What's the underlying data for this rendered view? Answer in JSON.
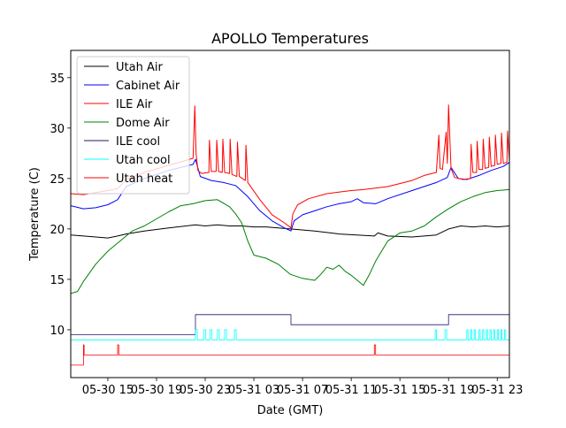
{
  "chart_data": {
    "type": "line",
    "title": "APOLLO Temperatures",
    "xlabel": "Date (GMT)",
    "ylabel": "Temperature (C)",
    "x_unit": "hours since 05-30 00:00 GMT",
    "xlim": [
      11.95,
      48.0
    ],
    "ylim": [
      5.26,
      37.7
    ],
    "grid": false,
    "legend_position": "top-left",
    "x_ticks": [
      {
        "value": 15,
        "label": "05-30 15"
      },
      {
        "value": 19,
        "label": "05-30 19"
      },
      {
        "value": 23,
        "label": "05-30 23"
      },
      {
        "value": 27,
        "label": "05-31 03"
      },
      {
        "value": 31,
        "label": "05-31 07"
      },
      {
        "value": 35,
        "label": "05-31 11"
      },
      {
        "value": 39,
        "label": "05-31 15"
      },
      {
        "value": 43,
        "label": "05-31 19"
      },
      {
        "value": 47,
        "label": "05-31 23"
      }
    ],
    "y_ticks": [
      {
        "value": 10,
        "label": "10"
      },
      {
        "value": 15,
        "label": "15"
      },
      {
        "value": 20,
        "label": "20"
      },
      {
        "value": 25,
        "label": "25"
      },
      {
        "value": 30,
        "label": "30"
      },
      {
        "value": 35,
        "label": "35"
      }
    ],
    "series": [
      {
        "name": "Utah Air",
        "color": "#000000",
        "x": [
          11.95,
          13.0,
          14.0,
          15.0,
          15.8,
          16.5,
          18,
          20,
          22.2,
          23,
          24,
          25,
          26,
          27,
          28,
          30,
          32,
          34,
          36.9,
          37.2,
          38,
          40,
          42,
          43.0,
          44,
          45,
          46,
          47,
          48.0
        ],
        "y": [
          19.4,
          19.3,
          19.2,
          19.1,
          19.3,
          19.5,
          19.8,
          20.1,
          20.4,
          20.3,
          20.4,
          20.3,
          20.3,
          20.2,
          20.2,
          20.0,
          19.8,
          19.5,
          19.3,
          19.6,
          19.3,
          19.2,
          19.4,
          20.0,
          20.3,
          20.2,
          20.3,
          20.2,
          20.3
        ]
      },
      {
        "name": "Cabinet Air",
        "color": "#0000ff",
        "x": [
          11.95,
          13,
          14,
          15,
          15.8,
          16.5,
          18,
          20,
          22.0,
          22.2,
          22.6,
          23.5,
          24.5,
          25.5,
          26.5,
          27.5,
          28.5,
          29.5,
          30.05,
          30.3,
          31,
          32,
          33,
          34,
          35,
          35.5,
          36,
          37,
          38,
          40,
          42,
          42.9,
          43.2,
          43.8,
          44.5,
          45.5,
          46.5,
          47.5,
          48.0
        ],
        "y": [
          22.3,
          22.0,
          22.1,
          22.4,
          22.9,
          24.2,
          25.0,
          25.8,
          26.4,
          26.9,
          25.2,
          24.8,
          24.6,
          24.3,
          23.2,
          21.8,
          20.8,
          20.1,
          19.8,
          20.8,
          21.4,
          21.8,
          22.2,
          22.5,
          22.7,
          23.0,
          22.6,
          22.5,
          23.0,
          23.8,
          24.6,
          25.1,
          26.1,
          25.0,
          24.9,
          25.3,
          25.8,
          26.2,
          26.6
        ]
      },
      {
        "name": "ILE Air",
        "color": "#ff0000",
        "x": [
          11.95,
          13,
          14,
          15,
          15.8,
          16.5,
          18,
          20,
          22.0,
          22.15,
          22.25,
          22.4,
          22.7,
          23.3,
          23.35,
          23.5,
          23.9,
          23.95,
          24.1,
          24.4,
          24.45,
          24.6,
          25.0,
          25.05,
          25.2,
          25.6,
          25.65,
          25.8,
          26.3,
          26.35,
          26.5,
          27.5,
          28.5,
          29.5,
          30.05,
          30.2,
          30.6,
          31.5,
          33,
          35,
          36,
          38,
          40,
          41,
          42,
          42.2,
          42.3,
          42.5,
          42.8,
          42.9,
          43.0,
          43.2,
          43.5,
          44.2,
          44.8,
          44.85,
          45.0,
          45.3,
          45.35,
          45.5,
          45.8,
          45.85,
          46.0,
          46.3,
          46.35,
          46.5,
          46.8,
          46.85,
          47.0,
          47.3,
          47.35,
          47.5,
          47.8,
          47.85,
          48.0
        ],
        "y": [
          23.5,
          23.4,
          23.6,
          23.8,
          24.0,
          24.9,
          25.6,
          26.3,
          27.0,
          32.2,
          27.5,
          25.8,
          25.5,
          25.6,
          28.8,
          25.7,
          25.7,
          28.8,
          25.7,
          25.6,
          28.9,
          25.6,
          25.5,
          28.9,
          25.4,
          25.2,
          28.6,
          25.2,
          24.8,
          28.3,
          24.6,
          22.9,
          21.4,
          20.6,
          20.1,
          21.5,
          22.4,
          23.0,
          23.5,
          23.8,
          23.9,
          24.2,
          24.8,
          25.3,
          25.6,
          29.3,
          26.0,
          25.9,
          29.6,
          26.5,
          32.3,
          26.0,
          25.1,
          24.9,
          25.0,
          28.4,
          25.6,
          25.6,
          28.7,
          25.9,
          25.9,
          28.9,
          26.0,
          26.1,
          29.1,
          26.2,
          26.3,
          29.3,
          26.4,
          26.5,
          29.5,
          26.5,
          26.6,
          29.7,
          26.7
        ]
      },
      {
        "name": "Dome Air",
        "color": "#008000",
        "x": [
          11.95,
          12.5,
          13,
          14,
          15,
          16,
          17,
          18,
          19,
          20,
          21,
          22,
          23,
          24,
          25,
          25.5,
          26,
          26.5,
          27,
          28,
          29,
          30,
          31,
          32,
          32.5,
          33,
          33.5,
          34,
          34.5,
          35,
          35.5,
          36,
          36.5,
          37,
          37.5,
          38,
          39,
          40,
          41,
          42,
          43,
          44,
          45,
          46,
          47,
          48.0
        ],
        "y": [
          13.6,
          13.8,
          14.8,
          16.5,
          17.8,
          18.8,
          19.8,
          20.3,
          21.0,
          21.7,
          22.3,
          22.5,
          22.8,
          22.9,
          22.2,
          21.5,
          20.6,
          18.8,
          17.4,
          17.1,
          16.5,
          15.5,
          15.1,
          14.9,
          15.5,
          16.2,
          16.0,
          16.4,
          15.8,
          15.4,
          14.9,
          14.4,
          15.5,
          16.8,
          17.8,
          18.8,
          19.6,
          19.8,
          20.3,
          21.2,
          22.0,
          22.7,
          23.2,
          23.6,
          23.8,
          23.9
        ]
      },
      {
        "name": "ILE cool",
        "color": "#191970",
        "step": true,
        "x": [
          11.95,
          22.2,
          30.05,
          43.0,
          48.0
        ],
        "y": [
          9.5,
          11.5,
          10.5,
          11.5,
          11.5
        ]
      },
      {
        "name": "Utah cool",
        "color": "#00ffff",
        "step": true,
        "x": [
          11.95,
          22.2,
          22.35,
          22.9,
          23.05,
          23.4,
          23.55,
          24.0,
          24.15,
          24.6,
          24.75,
          25.4,
          25.55,
          41.9,
          42.0,
          42.7,
          42.85,
          44.5,
          44.6,
          44.8,
          44.9,
          45.1,
          45.2,
          45.5,
          45.6,
          45.8,
          45.9,
          46.1,
          46.2,
          46.4,
          46.5,
          46.7,
          46.8,
          47.0,
          47.1,
          47.3,
          47.4,
          47.6,
          47.7,
          48.0
        ],
        "y": [
          9.0,
          10.0,
          9.0,
          10.0,
          9.0,
          10.0,
          9.0,
          10.0,
          9.0,
          10.0,
          9.0,
          10.0,
          9.0,
          10.0,
          9.0,
          10.0,
          9.0,
          10.0,
          9.0,
          10.0,
          9.0,
          10.0,
          9.0,
          10.0,
          9.0,
          10.0,
          9.0,
          10.0,
          9.0,
          10.0,
          9.0,
          10.0,
          9.0,
          10.0,
          9.0,
          10.0,
          9.0,
          10.0,
          9.0,
          9.0
        ]
      },
      {
        "name": "Utah heat",
        "color": "#ff0000",
        "step": true,
        "x": [
          11.95,
          13.0,
          13.05,
          15.8,
          15.9,
          36.9,
          37.0,
          48.0
        ],
        "y": [
          6.5,
          8.5,
          7.5,
          8.5,
          7.5,
          8.5,
          7.5,
          7.5
        ]
      }
    ]
  }
}
